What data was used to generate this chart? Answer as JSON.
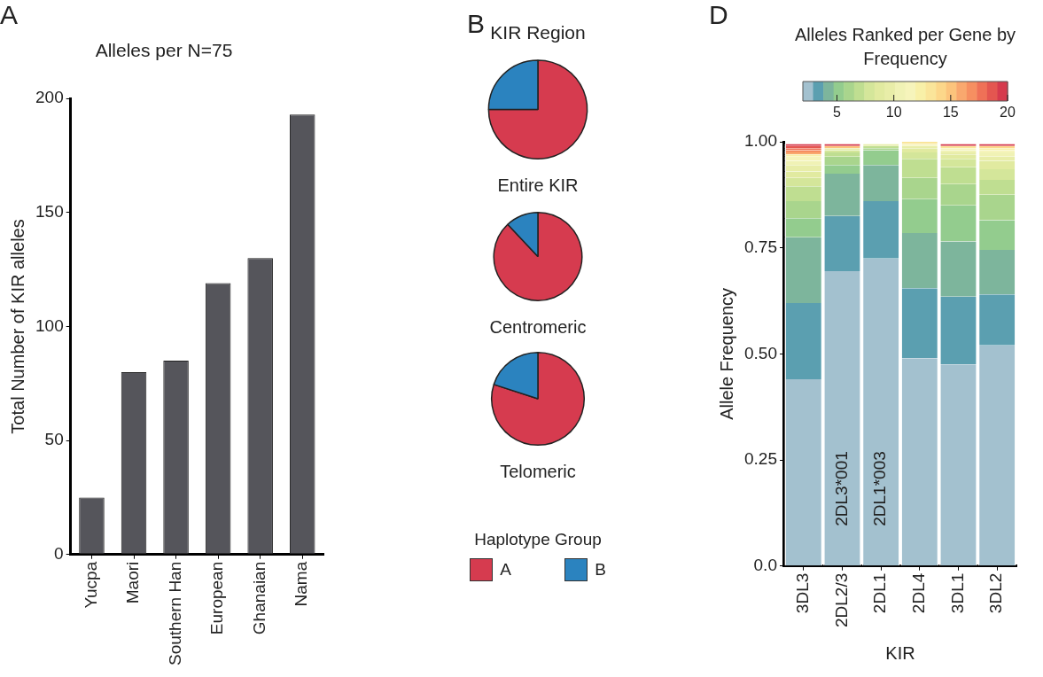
{
  "chart_data": [
    {
      "type": "bar",
      "title": "Alleles per N=75",
      "categories": [
        "Yucpa",
        "Maori",
        "Southern Han",
        "European",
        "Ghanaian",
        "Nama"
      ],
      "values": [
        25,
        80,
        85,
        119,
        130,
        193
      ],
      "color": "#55555b",
      "ylim": [
        0,
        200
      ],
      "yticks": [
        0,
        50,
        100,
        150,
        200
      ],
      "ylabel": "Total Number of KIR alleles",
      "grid": false,
      "annotations": [
        "A"
      ]
    },
    {
      "type": "pie",
      "title": "KIR Region",
      "xlabel": "Entire KIR",
      "categories": [
        null,
        null
      ],
      "values": [
        75,
        25
      ],
      "colors": [
        "#d63b4f",
        "#2b83bf"
      ],
      "annotations": [
        "B"
      ]
    },
    {
      "type": "pie",
      "xlabel": "Centromeric",
      "categories": [
        null,
        null
      ],
      "values": [
        88,
        12
      ],
      "colors": [
        "#d63b4f",
        "#2b83bf"
      ]
    },
    {
      "type": "pie",
      "xlabel": "Telomeric",
      "categories": [
        "A",
        "B"
      ],
      "values": [
        80,
        20
      ],
      "colors": [
        "#d63b4f",
        "#2b83bf"
      ],
      "legend": "bottom",
      "legend_title": "Haplotype Group"
    },
    {
      "type": "bar",
      "stacked": true,
      "categories": [
        "3DL3",
        "2DL2/3",
        "2DL1",
        "2DL4",
        "3DL1",
        "3DL2"
      ],
      "xlabel": "KIR",
      "ylabel": "Allele Frequency",
      "ylim": [
        0,
        1
      ],
      "yticks": [
        {
          "value": 0,
          "label": "0.0"
        },
        {
          "value": 0.25,
          "label": "0.25"
        },
        {
          "value": 0.5,
          "label": "0.50"
        },
        {
          "value": 0.75,
          "label": "0.75"
        },
        {
          "value": 1,
          "label": "1.00"
        }
      ],
      "grid": false,
      "clabel": "Alleles Ranked per Gene by Frequency",
      "clim": [
        2,
        20
      ],
      "cticks": [
        5,
        10,
        15,
        20
      ],
      "annotations": [
        "D",
        "2DL3*001",
        "2DL1*003"
      ],
      "series": [
        {
          "color": "#a3c1cf",
          "values": [
            0.44,
            0.695,
            0.725,
            0.49,
            0.475,
            0.52
          ]
        },
        {
          "color": "#5b9fb0",
          "values": [
            0.18,
            0.13,
            0.135,
            0.165,
            0.16,
            0.12
          ]
        },
        {
          "color": "#7db59c",
          "values": [
            0.155,
            0.1,
            0.085,
            0.13,
            0.13,
            0.105
          ]
        },
        {
          "color": "#93cc8e",
          "values": [
            0.045,
            0.02,
            0.035,
            0.08,
            0.085,
            0.07
          ]
        },
        {
          "color": "#a9d58d",
          "values": [
            0.04,
            0.02,
            0.005,
            0.05,
            0.05,
            0.06
          ]
        },
        {
          "color": "#bfde91",
          "values": [
            0.035,
            0.01,
            0.005,
            0.045,
            0.04,
            0.035
          ]
        },
        {
          "color": "#d4e69a",
          "values": [
            0.02,
            0.005,
            null,
            0.015,
            0.02,
            0.025
          ]
        },
        {
          "color": "#e1eaa0",
          "values": [
            0.015,
            null,
            null,
            0.01,
            0.01,
            0.02
          ]
        },
        {
          "color": "#e8eda8",
          "values": [
            0.015,
            0.005,
            0.005,
            0.005,
            0.005,
            0.01
          ]
        },
        {
          "color": "#f0f2b5",
          "values": [
            0.01,
            null,
            null,
            null,
            0.005,
            0.01
          ]
        },
        {
          "color": "#f6f4bb",
          "values": [
            0.01,
            null,
            null,
            0.005,
            0.005,
            0.005
          ]
        },
        {
          "color": "#f8f0a8",
          "values": [
            0.005,
            null,
            null,
            null,
            null,
            0.005
          ]
        },
        {
          "color": "#fae59a",
          "values": [
            null,
            null,
            null,
            0.005,
            0.005,
            null
          ]
        },
        {
          "color": "#fcd78a",
          "values": [
            null,
            null,
            null,
            null,
            null,
            0.005
          ]
        },
        {
          "color": "#fcc47c",
          "values": [
            null,
            0.005,
            null,
            null,
            null,
            null
          ]
        },
        {
          "color": "#f9a86e",
          "values": [
            0.005,
            null,
            null,
            null,
            null,
            null
          ]
        },
        {
          "color": "#f68f61",
          "values": [
            0.005,
            null,
            null,
            null,
            null,
            null
          ]
        },
        {
          "color": "#ef7157",
          "values": [
            0.005,
            null,
            null,
            null,
            null,
            null
          ]
        },
        {
          "color": "#e45650",
          "values": [
            0.005,
            null,
            null,
            null,
            null,
            null
          ]
        },
        {
          "color": "#d63a4d",
          "values": [
            0.005,
            0.005,
            null,
            null,
            0.005,
            0.005
          ]
        }
      ]
    }
  ]
}
